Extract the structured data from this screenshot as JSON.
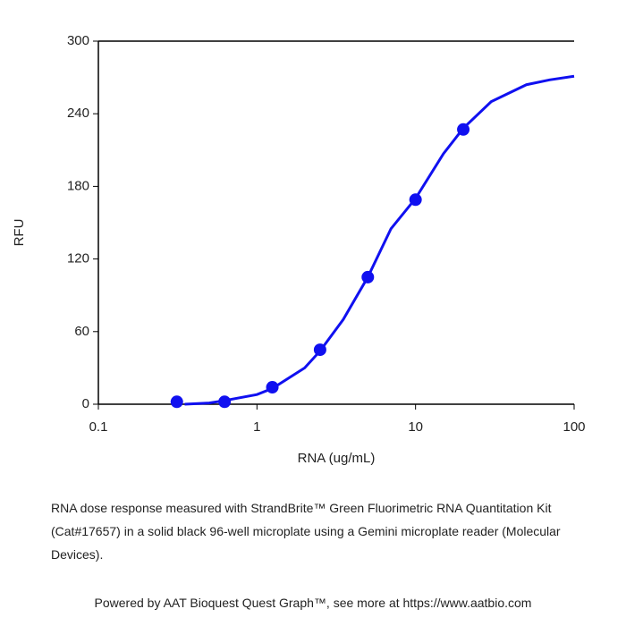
{
  "chart_data": {
    "type": "scatter",
    "x_label": "RNA (ug/mL)",
    "y_label": "RFU",
    "x": [
      0.3125,
      0.625,
      1.25,
      2.5,
      5,
      10,
      20
    ],
    "values": [
      2,
      2,
      14,
      45,
      105,
      169,
      227
    ],
    "color": "#1010f0",
    "curve": {
      "x": [
        0.35,
        0.5,
        0.625,
        1,
        1.25,
        2,
        2.5,
        3.5,
        5,
        7,
        10,
        15,
        20,
        30,
        50,
        70,
        100
      ],
      "values": [
        0,
        1,
        3,
        8,
        13,
        30,
        44,
        70,
        105,
        145,
        170,
        207,
        228,
        250,
        264,
        268,
        271
      ]
    },
    "xlog": true,
    "xlim": [
      0.1,
      100
    ],
    "xticks": [
      0.1,
      1,
      10,
      100
    ],
    "ylim": [
      0,
      300
    ],
    "yticks": [
      0,
      60,
      120,
      180,
      240,
      300
    ],
    "caption": "RNA dose response measured with StrandBrite™ Green Fluorimetric RNA Quantitation Kit (Cat#17657) in a solid black 96-well microplate using a Gemini microplate reader (Molecular Devices).",
    "footer": "Powered by AAT Bioquest Quest Graph™, see more at https://www.aatbio.com"
  }
}
